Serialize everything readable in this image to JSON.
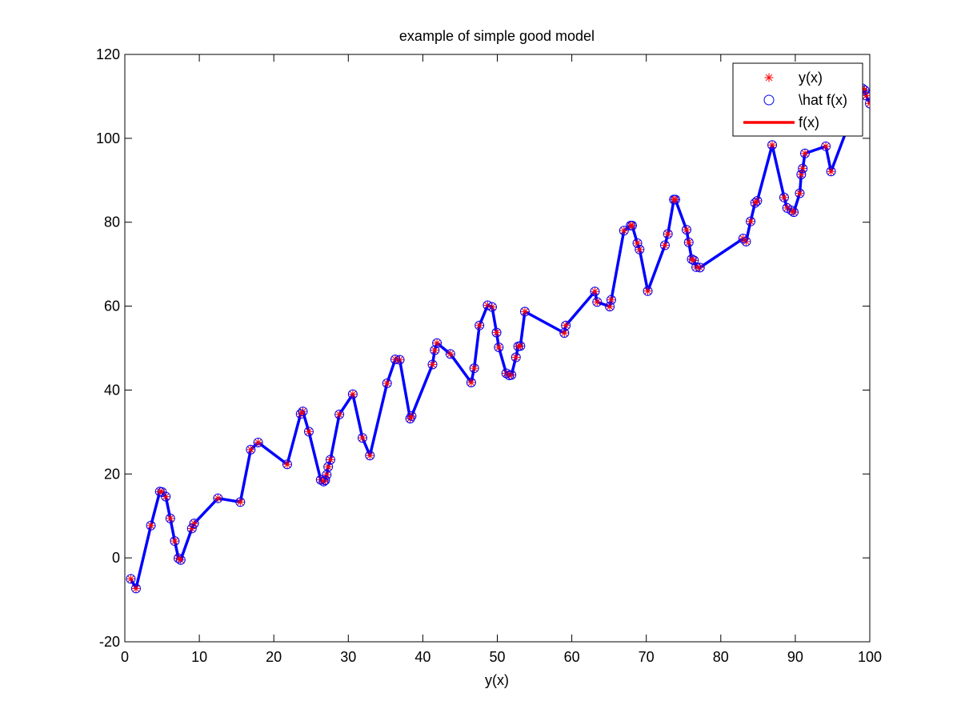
{
  "chart_data": {
    "type": "line",
    "title": "example of simple good model",
    "xlabel": "y(x)",
    "ylabel": "",
    "xlim": [
      0,
      100
    ],
    "ylim": [
      -20,
      120
    ],
    "grid": false,
    "legend_position": "top-right",
    "x_ticks": [
      0,
      10,
      20,
      30,
      40,
      50,
      60,
      70,
      80,
      90,
      100
    ],
    "y_ticks": [
      -20,
      0,
      20,
      40,
      60,
      80,
      100,
      120
    ],
    "x": [
      0.8,
      1.5,
      3.5,
      4.7,
      5.0,
      5.5,
      6.1,
      6.7,
      7.2,
      7.5,
      9.0,
      9.3,
      12.5,
      15.5,
      16.9,
      17.9,
      21.8,
      23.6,
      23.9,
      24.7,
      26.3,
      26.7,
      26.9,
      27.1,
      27.3,
      27.6,
      28.8,
      30.6,
      31.9,
      32.9,
      35.2,
      36.3,
      36.9,
      38.3,
      38.5,
      41.3,
      41.6,
      41.9,
      43.7,
      46.5,
      46.9,
      47.6,
      48.7,
      49.3,
      49.9,
      50.2,
      51.2,
      51.6,
      51.9,
      52.5,
      52.8,
      53.1,
      53.7,
      59.0,
      59.2,
      63.1,
      63.4,
      65.1,
      65.3,
      67.0,
      67.9,
      68.1,
      68.8,
      69.1,
      70.2,
      72.5,
      72.9,
      73.7,
      73.9,
      75.4,
      75.7,
      76.1,
      76.4,
      76.7,
      77.2,
      83.0,
      83.4,
      84.0,
      84.6,
      84.9,
      86.9,
      88.5,
      88.9,
      89.5,
      89.8,
      90.6,
      90.8,
      91.0,
      91.3,
      94.1,
      94.8,
      99.0,
      99.3,
      99.5,
      100.0
    ],
    "series": [
      {
        "name": "y(x)",
        "style": "markers",
        "marker": "asterisk",
        "color": "#ff0000",
        "values": [
          -5.0,
          -7.3,
          7.7,
          15.8,
          15.7,
          14.6,
          9.4,
          4.0,
          -0.1,
          -0.5,
          7.0,
          8.2,
          14.2,
          13.3,
          25.8,
          27.5,
          22.3,
          34.3,
          34.9,
          30.1,
          18.6,
          18.2,
          18.5,
          19.8,
          21.7,
          23.4,
          34.2,
          39.0,
          28.6,
          24.4,
          41.6,
          47.3,
          47.2,
          33.2,
          33.8,
          46.1,
          49.5,
          51.2,
          48.6,
          41.8,
          45.2,
          55.4,
          60.2,
          59.8,
          53.7,
          50.2,
          44.0,
          43.5,
          43.6,
          47.8,
          50.4,
          50.5,
          58.7,
          53.6,
          55.4,
          63.5,
          61.0,
          59.9,
          61.5,
          78.0,
          79.2,
          79.2,
          75.0,
          73.5,
          63.6,
          74.5,
          77.2,
          85.4,
          85.4,
          78.2,
          75.2,
          71.2,
          70.9,
          69.3,
          69.2,
          76.1,
          75.4,
          80.2,
          84.6,
          85.1,
          98.4,
          85.9,
          83.4,
          82.8,
          82.4,
          86.9,
          91.4,
          92.8,
          96.4,
          98.1,
          92.1,
          111.9,
          111.5,
          110.2,
          108.3
        ]
      },
      {
        "name": "\\hat f(x)",
        "style": "markers",
        "marker": "circle",
        "color": "#0000ff",
        "values": [
          -5.0,
          -7.3,
          7.7,
          15.8,
          15.7,
          14.6,
          9.4,
          4.0,
          -0.1,
          -0.5,
          7.0,
          8.2,
          14.2,
          13.3,
          25.8,
          27.5,
          22.3,
          34.3,
          34.9,
          30.1,
          18.6,
          18.2,
          18.5,
          19.8,
          21.7,
          23.4,
          34.2,
          39.0,
          28.6,
          24.4,
          41.6,
          47.3,
          47.2,
          33.2,
          33.8,
          46.1,
          49.5,
          51.2,
          48.6,
          41.8,
          45.2,
          55.4,
          60.2,
          59.8,
          53.7,
          50.2,
          44.0,
          43.5,
          43.6,
          47.8,
          50.4,
          50.5,
          58.7,
          53.6,
          55.4,
          63.5,
          61.0,
          59.9,
          61.5,
          78.0,
          79.2,
          79.2,
          75.0,
          73.5,
          63.6,
          74.5,
          77.2,
          85.4,
          85.4,
          78.2,
          75.2,
          71.2,
          70.9,
          69.3,
          69.2,
          76.1,
          75.4,
          80.2,
          84.6,
          85.1,
          98.4,
          85.9,
          83.4,
          82.8,
          82.4,
          86.9,
          91.4,
          92.8,
          96.4,
          98.1,
          92.1,
          111.9,
          111.5,
          110.2,
          108.3
        ]
      },
      {
        "name": "f(x)",
        "style": "line",
        "color": "#ff0000",
        "values": [
          -5.0,
          -7.3,
          7.7,
          15.8,
          15.7,
          14.6,
          9.4,
          4.0,
          -0.1,
          -0.5,
          7.0,
          8.2,
          14.2,
          13.3,
          25.8,
          27.5,
          22.3,
          34.3,
          34.9,
          30.1,
          18.6,
          18.2,
          18.5,
          19.8,
          21.7,
          23.4,
          34.2,
          39.0,
          28.6,
          24.4,
          41.6,
          47.3,
          47.2,
          33.2,
          33.8,
          46.1,
          49.5,
          51.2,
          48.6,
          41.8,
          45.2,
          55.4,
          60.2,
          59.8,
          53.7,
          50.2,
          44.0,
          43.5,
          43.6,
          47.8,
          50.4,
          50.5,
          58.7,
          53.6,
          55.4,
          63.5,
          61.0,
          59.9,
          61.5,
          78.0,
          79.2,
          79.2,
          75.0,
          73.5,
          63.6,
          74.5,
          77.2,
          85.4,
          85.4,
          78.2,
          75.2,
          71.2,
          70.9,
          69.3,
          69.2,
          76.1,
          75.4,
          80.2,
          84.6,
          85.1,
          98.4,
          85.9,
          83.4,
          82.8,
          82.4,
          86.9,
          91.4,
          92.8,
          96.4,
          98.1,
          92.1,
          111.9,
          111.5,
          110.2,
          108.3
        ]
      },
      {
        "name": "",
        "style": "line",
        "color": "#0000ff",
        "values": [
          -5.0,
          -7.3,
          7.7,
          15.8,
          15.7,
          14.6,
          9.4,
          4.0,
          -0.1,
          -0.5,
          7.0,
          8.2,
          14.2,
          13.3,
          25.8,
          27.5,
          22.3,
          34.3,
          34.9,
          30.1,
          18.6,
          18.2,
          18.5,
          19.8,
          21.7,
          23.4,
          34.2,
          39.0,
          28.6,
          24.4,
          41.6,
          47.3,
          47.2,
          33.2,
          33.8,
          46.1,
          49.5,
          51.2,
          48.6,
          41.8,
          45.2,
          55.4,
          60.2,
          59.8,
          53.7,
          50.2,
          44.0,
          43.5,
          43.6,
          47.8,
          50.4,
          50.5,
          58.7,
          53.6,
          55.4,
          63.5,
          61.0,
          59.9,
          61.5,
          78.0,
          79.2,
          79.2,
          75.0,
          73.5,
          63.6,
          74.5,
          77.2,
          85.4,
          85.4,
          78.2,
          75.2,
          71.2,
          70.9,
          69.3,
          69.2,
          76.1,
          75.4,
          80.2,
          84.6,
          85.1,
          98.4,
          85.9,
          83.4,
          82.8,
          82.4,
          86.9,
          91.4,
          92.8,
          96.4,
          98.1,
          92.1,
          111.9,
          111.5,
          110.2,
          108.3
        ]
      }
    ]
  }
}
